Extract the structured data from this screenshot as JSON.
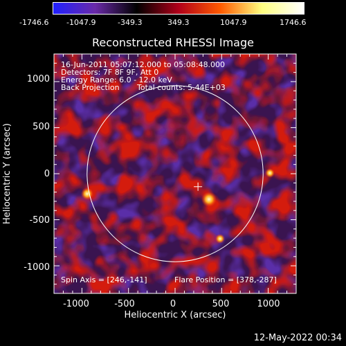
{
  "colorbar": {
    "ticks": [
      "-1746.6",
      "-1047.9",
      "-349.3",
      "349.3",
      "1047.9",
      "1746.6"
    ],
    "colors": [
      "#2020ff",
      "#6a2aa8",
      "#000000",
      "#b0001a",
      "#ff5a00",
      "#ffff80",
      "#ffffff"
    ]
  },
  "plot": {
    "title": "Reconstructed RHESSI Image",
    "xlabel": "Heliocentric X (arcsec)",
    "ylabel": "Heliocentric Y (arcsec)",
    "xlim": [
      -1300,
      1300
    ],
    "ylim": [
      -1300,
      1300
    ],
    "xticks": [
      "-1000",
      "-500",
      "0",
      "500",
      "1000"
    ],
    "yticks": [
      "-1000",
      "-500",
      "0",
      "500",
      "1000"
    ],
    "annotations": {
      "line1": "16-Jun-2011 05:07:12.000 to 05:08:48.000",
      "line2": "Detectors: 7F 8F 9F, Att 0",
      "line3": "Energy Range: 6.0 - 12.0 keV",
      "line4a": "Back Projection",
      "line4b": "Total counts: 5.44E+03",
      "spin": "Spin Axis = [246,-141]",
      "flare": "Flare Position = [378,-287]"
    },
    "limb_radius": 945,
    "crosshair_center": [
      246,
      -141
    ],
    "background_color": "#3a1450"
  },
  "footer": {
    "timestamp": "12-May-2022 00:34"
  }
}
